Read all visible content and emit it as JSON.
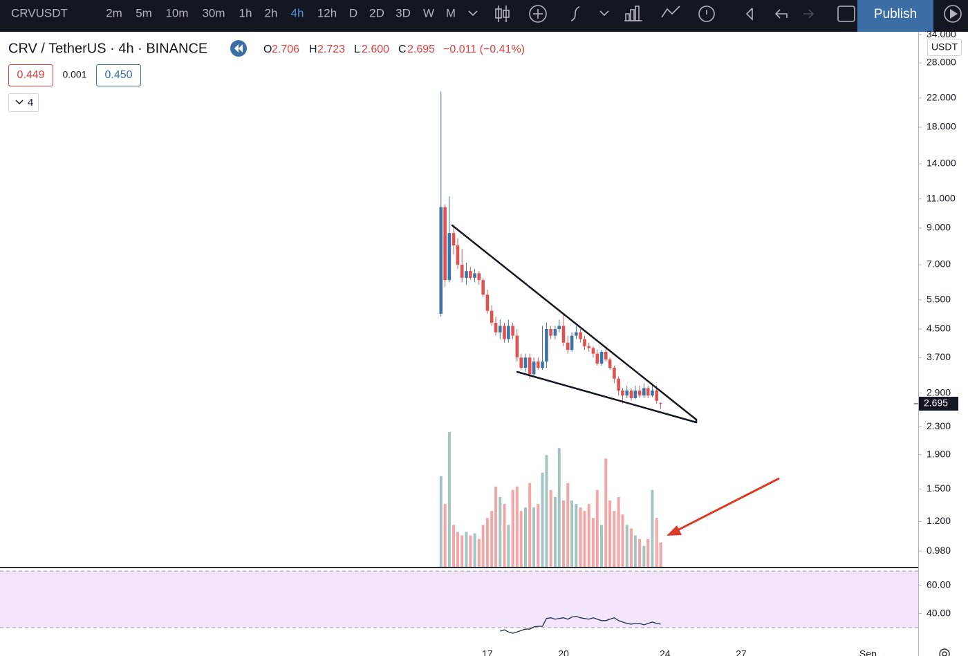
{
  "toolbar": {
    "symbol": "CRVUSDT",
    "intervals": [
      "2m",
      "5m",
      "10m",
      "30m",
      "1h",
      "2h",
      "4h",
      "12h",
      "D",
      "2D",
      "3D",
      "W",
      "M"
    ],
    "publish": "Publish"
  },
  "legend": {
    "title": "CRV / TetherUS · 4h · BINANCE",
    "o": "O",
    "open": "2.706",
    "h": "H",
    "high": "2.723",
    "l": "L",
    "low": "2.600",
    "c": "C",
    "close": "2.695",
    "change": "−0.011 (−0.41%)"
  },
  "trade": {
    "sell": "0.449",
    "spread": "0.001",
    "buy": "0.450"
  },
  "indicators": "4",
  "chart_data": [
    {
      "type": "candlestick",
      "log_scale": true,
      "unit_label": "USDT",
      "last_label": "2.695",
      "up_color": "#3f73a6",
      "down_color": "#e05252",
      "volume_up_color": "#a3c4c1",
      "volume_down_color": "#f4a6a6",
      "x": [
        15.17,
        15.33,
        15.5,
        15.67,
        15.83,
        16,
        16.17,
        16.33,
        16.5,
        16.67,
        16.83,
        17,
        17.17,
        17.33,
        17.5,
        17.67,
        17.83,
        18,
        18.17,
        18.33,
        18.5,
        18.67,
        18.83,
        19,
        19.17,
        19.33,
        19.5,
        19.67,
        19.83,
        20,
        20.17,
        20.33,
        20.5,
        20.67,
        20.83,
        21,
        21.17,
        21.33,
        21.5,
        21.67,
        21.83,
        22,
        22.17,
        22.33,
        22.5,
        22.67,
        22.83,
        23,
        23.17,
        23.33,
        23.5,
        23.67,
        23.83
      ],
      "open": [
        5.0,
        10.4,
        6.3,
        8.7,
        8.0,
        7.0,
        6.4,
        6.7,
        6.4,
        6.6,
        6.3,
        5.7,
        5.1,
        4.7,
        4.4,
        4.6,
        4.2,
        4.6,
        4.3,
        3.7,
        3.45,
        3.7,
        3.3,
        3.6,
        3.45,
        3.6,
        4.5,
        4.3,
        4.5,
        4.6,
        4.1,
        3.9,
        4.3,
        4.4,
        4.2,
        4.0,
        3.95,
        3.8,
        3.55,
        3.85,
        3.65,
        3.45,
        3.2,
        2.95,
        2.85,
        2.95,
        2.8,
        2.95,
        2.85,
        3.0,
        2.85,
        2.95,
        2.706
      ],
      "high": [
        23,
        10.6,
        11.2,
        9.2,
        8.4,
        7.8,
        7.1,
        6.9,
        6.8,
        6.7,
        6.4,
        5.9,
        5.3,
        4.9,
        4.8,
        4.7,
        4.8,
        4.7,
        4.5,
        3.8,
        3.8,
        3.8,
        3.7,
        3.7,
        4.6,
        4.7,
        4.6,
        4.6,
        4.8,
        5.0,
        4.3,
        4.4,
        4.6,
        4.5,
        4.3,
        4.1,
        4.0,
        3.9,
        3.9,
        4.0,
        3.7,
        3.5,
        3.25,
        3.0,
        3.05,
        3.0,
        3.05,
        3.05,
        3.1,
        3.05,
        3.1,
        3.05,
        2.723
      ],
      "low": [
        4.9,
        6.0,
        6.2,
        7.5,
        6.8,
        6.2,
        6.1,
        6.3,
        6.2,
        6.1,
        5.6,
        5.0,
        4.6,
        4.3,
        4.2,
        4.1,
        4.1,
        4.2,
        3.6,
        3.4,
        3.35,
        3.2,
        3.25,
        3.4,
        3.4,
        3.45,
        4.2,
        4.2,
        4.4,
        4.0,
        3.8,
        3.85,
        4.2,
        4.1,
        3.9,
        3.85,
        3.7,
        3.5,
        3.5,
        3.6,
        3.4,
        3.1,
        2.85,
        2.7,
        2.8,
        2.75,
        2.78,
        2.8,
        2.8,
        2.8,
        2.82,
        2.7,
        2.6
      ],
      "close": [
        10.4,
        6.3,
        8.7,
        8.0,
        7.0,
        6.4,
        6.7,
        6.4,
        6.6,
        6.3,
        5.7,
        5.1,
        4.7,
        4.4,
        4.6,
        4.2,
        4.6,
        4.3,
        3.7,
        3.45,
        3.7,
        3.3,
        3.6,
        3.45,
        3.6,
        4.5,
        4.3,
        4.5,
        4.6,
        4.1,
        3.9,
        4.3,
        4.4,
        4.2,
        4.0,
        3.95,
        3.8,
        3.55,
        3.85,
        3.65,
        3.45,
        3.2,
        2.95,
        2.85,
        2.95,
        2.8,
        2.95,
        2.85,
        3.0,
        2.85,
        2.95,
        2.75,
        2.695
      ],
      "volume": [
        130,
        90,
        193,
        60,
        50,
        45,
        50,
        45,
        48,
        40,
        60,
        70,
        80,
        115,
        100,
        90,
        60,
        110,
        115,
        80,
        85,
        120,
        85,
        90,
        135,
        160,
        110,
        100,
        170,
        95,
        120,
        95,
        90,
        85,
        80,
        90,
        70,
        110,
        60,
        155,
        95,
        80,
        100,
        75,
        60,
        55,
        45,
        40,
        30,
        40,
        110,
        70,
        35
      ],
      "xlim": [
        -2.21,
        33.98
      ],
      "xticks": [
        17,
        20,
        24,
        27,
        {
          "value": 32,
          "label": "Sep"
        }
      ],
      "ylim": [
        0.879,
        34.5
      ],
      "yticks": [
        {
          "value": 34,
          "label": "34.000"
        },
        {
          "value": 28,
          "label": "28.000"
        },
        {
          "value": 22,
          "label": "22.000"
        },
        {
          "value": 18,
          "label": "18.000"
        },
        {
          "value": 14,
          "label": "14.000"
        },
        {
          "value": 11,
          "label": "11.000"
        },
        {
          "value": 9,
          "label": "9.000"
        },
        {
          "value": 7,
          "label": "7.000"
        },
        {
          "value": 5.5,
          "label": "5.500"
        },
        {
          "value": 4.5,
          "label": "4.500"
        },
        {
          "value": 3.7,
          "label": "3.700"
        },
        {
          "value": 2.9,
          "label": "2.900"
        },
        {
          "value": 2.3,
          "label": "2.300"
        },
        {
          "value": 1.9,
          "label": "1.900"
        },
        {
          "value": 1.5,
          "label": "1.500"
        },
        {
          "value": 1.2,
          "label": "1.200"
        },
        {
          "value": 0.98,
          "label": "0.980"
        }
      ]
    },
    {
      "type": "line",
      "color": "#1c2a4a",
      "band": [
        30,
        70
      ],
      "band_color": "#f3e6fc",
      "x": [
        17.5,
        17.67,
        17.83,
        18,
        18.17,
        18.33,
        18.5,
        18.67,
        18.83,
        19,
        19.17,
        19.33,
        19.5,
        19.67,
        19.83,
        20,
        20.17,
        20.33,
        20.5,
        20.67,
        20.83,
        21,
        21.17,
        21.33,
        21.5,
        21.67,
        21.83,
        22,
        22.17,
        22.33,
        22.5,
        22.67,
        22.83,
        23,
        23.17,
        23.33,
        23.5,
        23.67,
        23.83
      ],
      "values": [
        27.5,
        28.5,
        27,
        26,
        27,
        28,
        29,
        29,
        30.5,
        31,
        31,
        36.5,
        37,
        36,
        36.5,
        37,
        36,
        37.5,
        38,
        37,
        36.5,
        36,
        37,
        36,
        35,
        35,
        36,
        37,
        35,
        34,
        33,
        32.5,
        33,
        33,
        32,
        33,
        34,
        33,
        32.5
      ],
      "xlim": [
        -2.21,
        33.98
      ],
      "ylim": [
        10,
        72
      ],
      "yticks": [
        {
          "value": 60,
          "label": "60.00"
        },
        {
          "value": 40,
          "label": "40.00"
        }
      ]
    }
  ]
}
